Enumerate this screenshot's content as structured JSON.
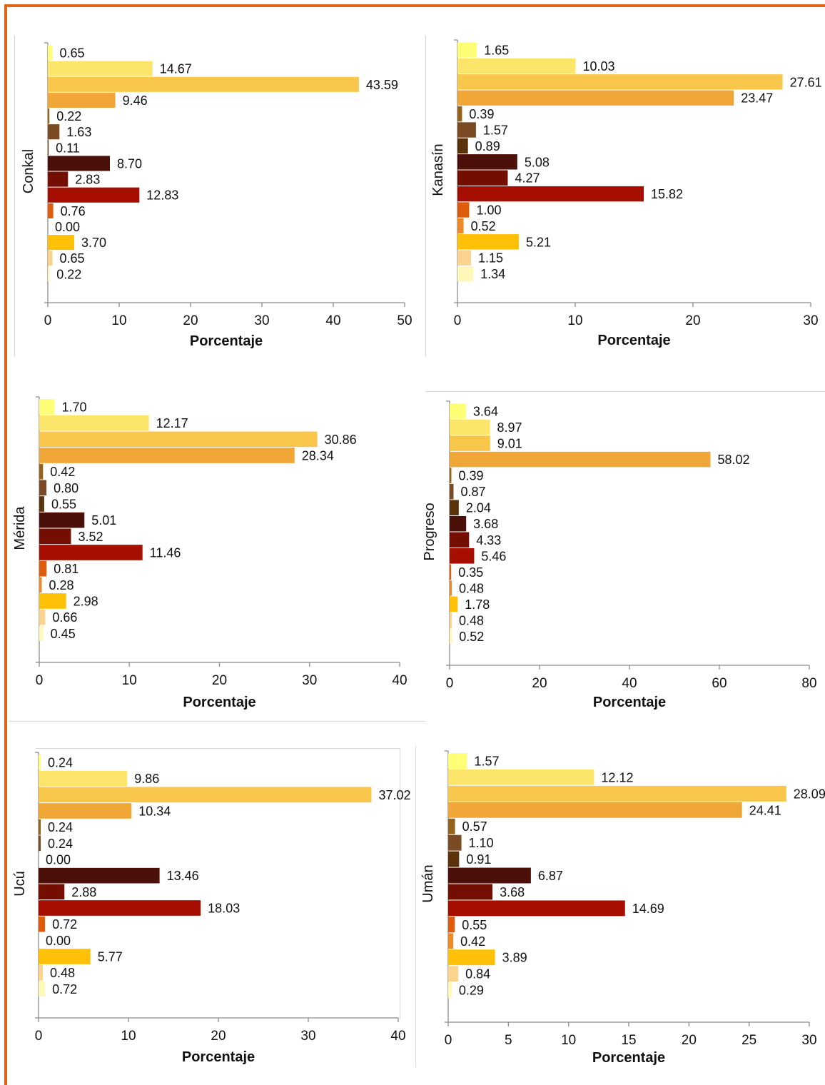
{
  "category_colors": [
    "#ffff77",
    "#fde56b",
    "#f8c64b",
    "#f1a737",
    "#94621b",
    "#7a4a25",
    "#5b3209",
    "#4c100b",
    "#740e03",
    "#a50e00",
    "#e05c0d",
    "#ef8a2b",
    "#ffc107",
    "#fbd38f",
    "#fff8b8"
  ],
  "chart_data": [
    {
      "type": "bar",
      "orientation": "horizontal",
      "ylabel": "Conkal",
      "xlabel": "Porcentaje",
      "xlim": [
        0,
        50
      ],
      "xticks": [
        "0",
        "10",
        "20",
        "30",
        "40",
        "50"
      ],
      "values": [
        0.65,
        14.67,
        43.59,
        9.46,
        0.22,
        1.63,
        0.11,
        8.7,
        2.83,
        12.83,
        0.76,
        0.0,
        3.7,
        0.65,
        0.22
      ],
      "labels": [
        "0.65",
        "14.67",
        "43.59",
        "9.46",
        "0.22",
        "1.63",
        "0.11",
        "8.70",
        "2.83",
        "12.83",
        "0.76",
        "0.00",
        "3.70",
        "0.65",
        "0.22"
      ]
    },
    {
      "type": "bar",
      "orientation": "horizontal",
      "ylabel": "Kanasín",
      "xlabel": "Porcentaje",
      "xlim": [
        0,
        30
      ],
      "xticks": [
        "0",
        "10",
        "20",
        "30"
      ],
      "values": [
        1.65,
        10.03,
        27.61,
        23.47,
        0.39,
        1.57,
        0.89,
        5.08,
        4.27,
        15.82,
        1.0,
        0.52,
        5.21,
        1.15,
        1.34
      ],
      "labels": [
        "1.65",
        "10.03",
        "27.61",
        "23.47",
        "0.39",
        "1.57",
        "0.89",
        "5.08",
        "4.27",
        "15.82",
        "1.00",
        "0.52",
        "5.21",
        "1.15",
        "1.34"
      ]
    },
    {
      "type": "bar",
      "orientation": "horizontal",
      "ylabel": "Mérida",
      "xlabel": "Porcentaje",
      "xlim": [
        0,
        40
      ],
      "xticks": [
        "0",
        "10",
        "20",
        "30",
        "40"
      ],
      "values": [
        1.7,
        12.17,
        30.86,
        28.34,
        0.42,
        0.8,
        0.55,
        5.01,
        3.52,
        11.46,
        0.81,
        0.28,
        2.98,
        0.66,
        0.45
      ],
      "labels": [
        "1.70",
        "12.17",
        "30.86",
        "28.34",
        "0.42",
        "0.80",
        "0.55",
        "5.01",
        "3.52",
        "11.46",
        "0.81",
        "0.28",
        "2.98",
        "0.66",
        "0.45"
      ]
    },
    {
      "type": "bar",
      "orientation": "horizontal",
      "ylabel": "Progreso",
      "xlabel": "Porcentaje",
      "xlim": [
        0,
        80
      ],
      "xticks": [
        "0",
        "20",
        "40",
        "60",
        "80"
      ],
      "values": [
        3.64,
        8.97,
        9.01,
        58.02,
        0.39,
        0.87,
        2.04,
        3.68,
        4.33,
        5.46,
        0.35,
        0.48,
        1.78,
        0.48,
        0.52
      ],
      "labels": [
        "3.64",
        "8.97",
        "9.01",
        "58.02",
        "0.39",
        "0.87",
        "2.04",
        "3.68",
        "4.33",
        "5.46",
        "0.35",
        "0.48",
        "1.78",
        "0.48",
        "0.52"
      ]
    },
    {
      "type": "bar",
      "orientation": "horizontal",
      "ylabel": "Ucú",
      "xlabel": "Porcentaje",
      "xlim": [
        0,
        40
      ],
      "xticks": [
        "0",
        "10",
        "20",
        "30",
        "40"
      ],
      "values": [
        0.24,
        9.86,
        37.02,
        10.34,
        0.24,
        0.24,
        0.0,
        13.46,
        2.88,
        18.03,
        0.72,
        0.0,
        5.77,
        0.48,
        0.72
      ],
      "labels": [
        "0.24",
        "9.86",
        "37.02",
        "10.34",
        "0.24",
        "0.24",
        "0.00",
        "13.46",
        "2.88",
        "18.03",
        "0.72",
        "0.00",
        "5.77",
        "0.48",
        "0.72"
      ]
    },
    {
      "type": "bar",
      "orientation": "horizontal",
      "ylabel": "Umán",
      "xlabel": "Porcentaje",
      "xlim": [
        0,
        30
      ],
      "xticks": [
        "0",
        "5",
        "10",
        "15",
        "20",
        "25",
        "30"
      ],
      "values": [
        1.57,
        12.12,
        28.09,
        24.41,
        0.57,
        1.1,
        0.91,
        6.87,
        3.68,
        14.69,
        0.55,
        0.42,
        3.89,
        0.84,
        0.29
      ],
      "labels": [
        "1.57",
        "12.12",
        "28.09",
        "24.41",
        "0.57",
        "1.10",
        "0.91",
        "6.87",
        "3.68",
        "14.69",
        "0.55",
        "0.42",
        "3.89",
        "0.84",
        "0.29"
      ]
    }
  ]
}
